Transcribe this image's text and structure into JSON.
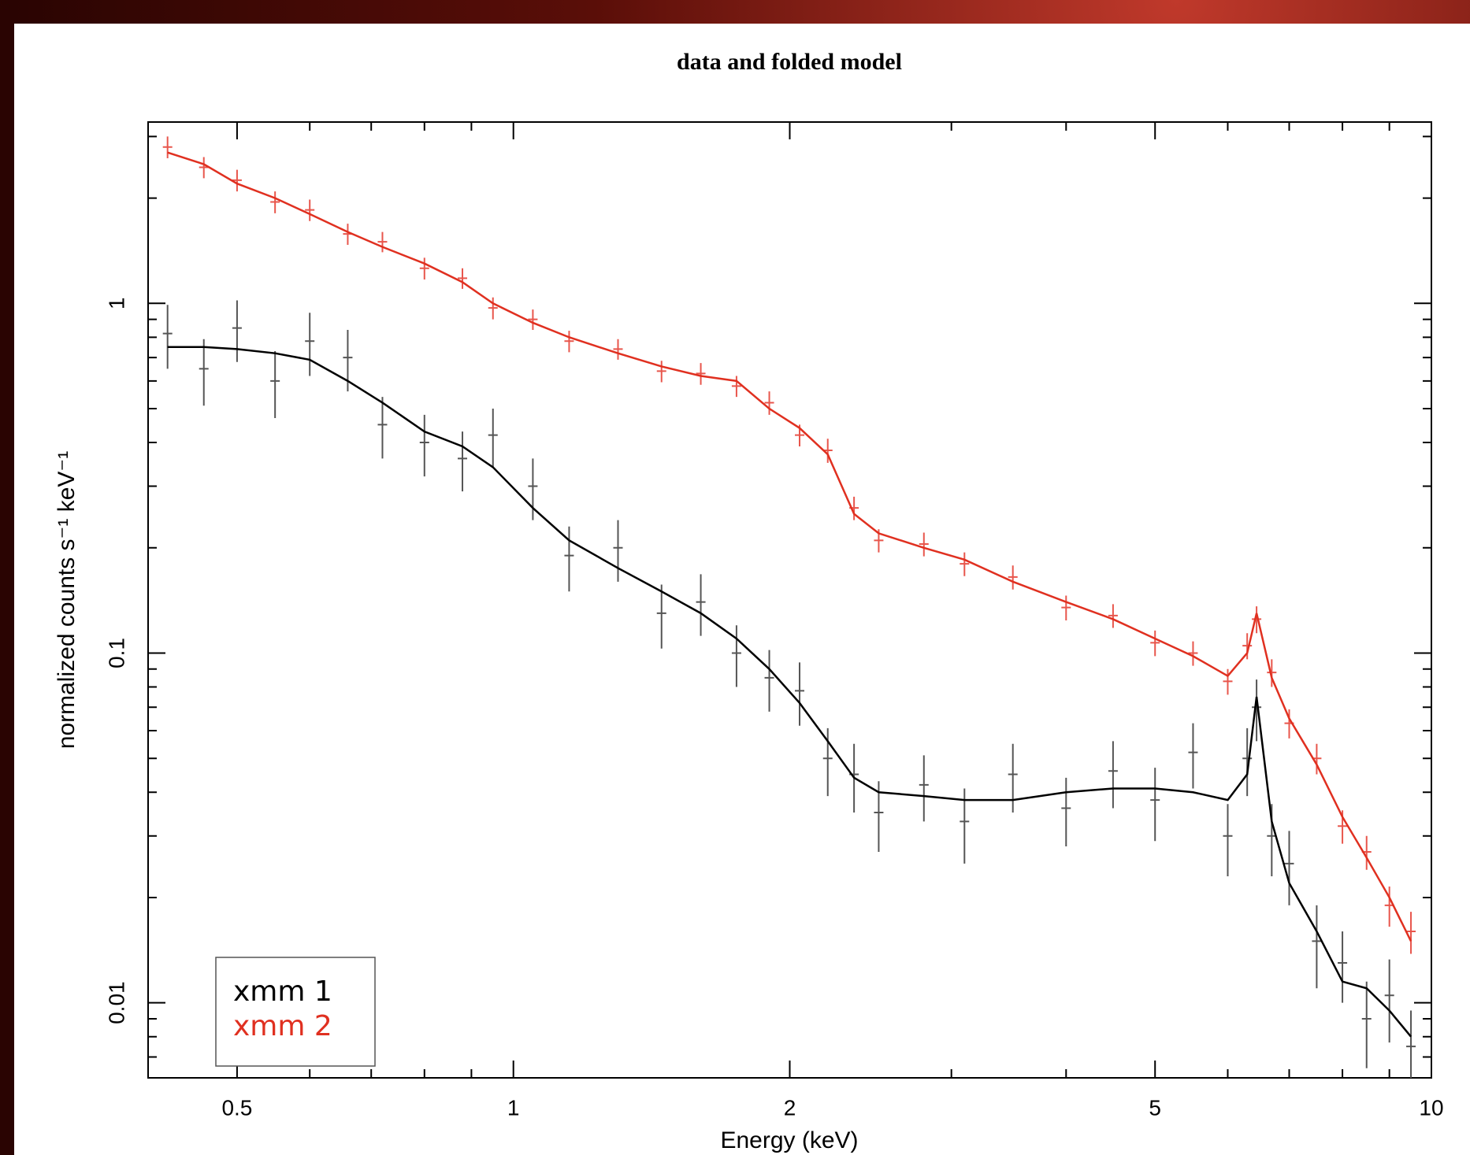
{
  "chart_data": {
    "type": "spectrum",
    "title": "data and folded model",
    "xlabel": "Energy (keV)",
    "ylabel": "normalized counts s⁻¹ keV⁻¹",
    "xscale": "log",
    "yscale": "log",
    "xlim": [
      0.4,
      10
    ],
    "ylim": [
      0.0061,
      3.3
    ],
    "xticks": [
      0.5,
      1,
      2,
      5,
      10
    ],
    "yticks": [
      0.01,
      0.1,
      1
    ],
    "xminorticks": [
      0.4,
      0.6,
      0.7,
      0.8,
      0.9,
      3,
      4,
      6,
      7,
      8,
      9
    ],
    "yminorticks": [
      0.007,
      0.008,
      0.009,
      0.02,
      0.03,
      0.04,
      0.05,
      0.06,
      0.07,
      0.08,
      0.09,
      0.2,
      0.3,
      0.4,
      0.5,
      0.6,
      0.7,
      0.8,
      0.9,
      2,
      3
    ],
    "legend": "lower left",
    "series": [
      {
        "name": "xmm 1",
        "color": "#000000",
        "errorcolor": "#555555",
        "x": [
          0.42,
          0.46,
          0.5,
          0.55,
          0.6,
          0.66,
          0.72,
          0.8,
          0.88,
          0.95,
          1.05,
          1.15,
          1.3,
          1.45,
          1.6,
          1.75,
          1.9,
          2.05,
          2.2,
          2.35,
          2.5,
          2.8,
          3.1,
          3.5,
          4.0,
          4.5,
          5.0,
          5.5,
          6.0,
          6.3,
          6.45,
          6.7,
          7.0,
          7.5,
          8.0,
          8.5,
          9.0,
          9.5
        ],
        "values": [
          0.82,
          0.65,
          0.85,
          0.6,
          0.78,
          0.7,
          0.45,
          0.4,
          0.36,
          0.42,
          0.3,
          0.19,
          0.2,
          0.13,
          0.14,
          0.1,
          0.085,
          0.078,
          0.05,
          0.045,
          0.035,
          0.042,
          0.033,
          0.045,
          0.036,
          0.046,
          0.038,
          0.052,
          0.03,
          0.05,
          0.07,
          0.03,
          0.025,
          0.015,
          0.013,
          0.009,
          0.0105,
          0.0075
        ],
        "errors": [
          0.17,
          0.14,
          0.17,
          0.13,
          0.16,
          0.14,
          0.09,
          0.08,
          0.07,
          0.08,
          0.06,
          0.04,
          0.04,
          0.027,
          0.028,
          0.02,
          0.017,
          0.016,
          0.011,
          0.01,
          0.008,
          0.009,
          0.008,
          0.01,
          0.008,
          0.01,
          0.009,
          0.011,
          0.007,
          0.011,
          0.014,
          0.007,
          0.006,
          0.004,
          0.003,
          0.0025,
          0.0028,
          0.002
        ],
        "model": [
          0.75,
          0.75,
          0.74,
          0.72,
          0.69,
          0.6,
          0.52,
          0.43,
          0.39,
          0.34,
          0.26,
          0.21,
          0.175,
          0.15,
          0.13,
          0.11,
          0.09,
          0.072,
          0.056,
          0.044,
          0.04,
          0.039,
          0.038,
          0.038,
          0.04,
          0.041,
          0.041,
          0.04,
          0.038,
          0.045,
          0.075,
          0.033,
          0.022,
          0.016,
          0.0115,
          0.011,
          0.0095,
          0.008
        ]
      },
      {
        "name": "xmm 2",
        "color": "#e03020",
        "errorcolor": "#e8564c",
        "x": [
          0.42,
          0.46,
          0.5,
          0.55,
          0.6,
          0.66,
          0.72,
          0.8,
          0.88,
          0.95,
          1.05,
          1.15,
          1.3,
          1.45,
          1.6,
          1.75,
          1.9,
          2.05,
          2.2,
          2.35,
          2.5,
          2.8,
          3.1,
          3.5,
          4.0,
          4.5,
          5.0,
          5.5,
          6.0,
          6.3,
          6.45,
          6.7,
          7.0,
          7.5,
          8.0,
          8.5,
          9.0,
          9.5
        ],
        "values": [
          2.8,
          2.45,
          2.25,
          1.95,
          1.85,
          1.58,
          1.5,
          1.26,
          1.18,
          0.97,
          0.9,
          0.78,
          0.74,
          0.64,
          0.63,
          0.58,
          0.52,
          0.42,
          0.38,
          0.26,
          0.21,
          0.205,
          0.18,
          0.165,
          0.135,
          0.128,
          0.107,
          0.1,
          0.083,
          0.105,
          0.125,
          0.088,
          0.063,
          0.05,
          0.032,
          0.027,
          0.019,
          0.016
        ],
        "errors": [
          0.2,
          0.17,
          0.16,
          0.14,
          0.13,
          0.11,
          0.1,
          0.09,
          0.08,
          0.07,
          0.06,
          0.055,
          0.05,
          0.045,
          0.045,
          0.04,
          0.04,
          0.03,
          0.03,
          0.02,
          0.016,
          0.016,
          0.014,
          0.013,
          0.011,
          0.01,
          0.009,
          0.008,
          0.007,
          0.009,
          0.011,
          0.008,
          0.006,
          0.005,
          0.0035,
          0.003,
          0.0025,
          0.0022
        ],
        "model": [
          2.7,
          2.5,
          2.2,
          2.0,
          1.8,
          1.6,
          1.45,
          1.3,
          1.15,
          1.0,
          0.88,
          0.8,
          0.72,
          0.66,
          0.62,
          0.6,
          0.5,
          0.44,
          0.37,
          0.25,
          0.22,
          0.2,
          0.185,
          0.16,
          0.14,
          0.125,
          0.11,
          0.098,
          0.086,
          0.1,
          0.13,
          0.085,
          0.065,
          0.048,
          0.034,
          0.026,
          0.02,
          0.015
        ]
      }
    ]
  }
}
